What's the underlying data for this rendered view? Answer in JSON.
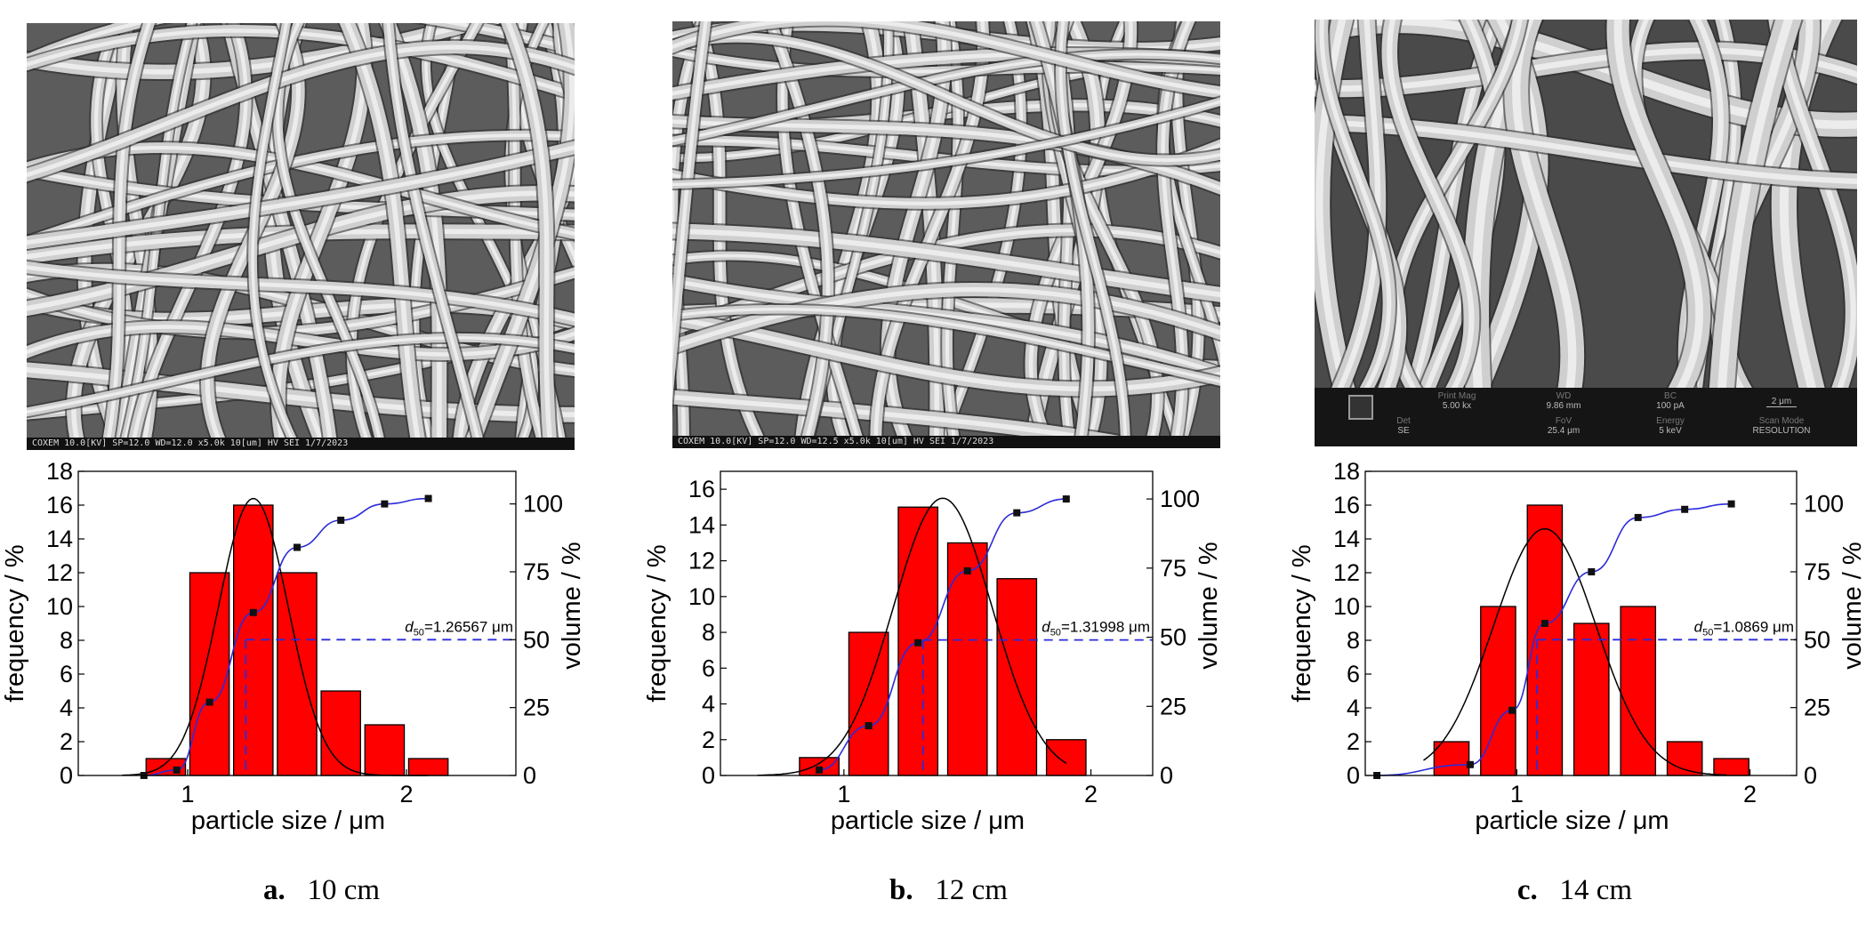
{
  "panels": [
    {
      "caption": {
        "letter": "a.",
        "text": "10 cm"
      },
      "sem": {
        "style": "bar",
        "bar_text": "COXEM 10.0[KV] SP=12.0 WD=12.0 x5.0k 10[um] HV SEI 1/7/2023"
      },
      "chart_data": {
        "type": "bar",
        "x_label": "particle size / μm",
        "y_left_label": "frequency / %",
        "y_right_label": "volume / %",
        "xlim": [
          0.5,
          2.5
        ],
        "ylim_left": [
          0,
          18
        ],
        "ylim_right": [
          0,
          112
        ],
        "x_ticks": [
          1,
          2
        ],
        "y_left_ticks": [
          0,
          2,
          4,
          6,
          8,
          10,
          12,
          14,
          16,
          18
        ],
        "y_right_ticks": [
          0,
          25,
          50,
          75,
          100
        ],
        "bar_width": 0.18,
        "bars": {
          "x": [
            0.9,
            1.1,
            1.3,
            1.5,
            1.7,
            1.9,
            2.1
          ],
          "values": [
            1,
            12,
            16,
            12,
            5,
            3,
            1
          ]
        },
        "cumulative_points": {
          "x": [
            0.8,
            0.95,
            1.1,
            1.3,
            1.5,
            1.7,
            1.9,
            2.1
          ],
          "values": [
            0,
            2,
            27,
            60,
            84,
            94,
            100,
            102
          ]
        },
        "normal_fit": {
          "mean": 1.3,
          "sd": 0.16,
          "peak": 16.4,
          "x_range": [
            0.7,
            2.1
          ]
        },
        "d50": {
          "value": 1.26567,
          "label_prefix": "d",
          "label_sub": "50",
          "label_value": "=1.26567 μm",
          "y_right": 50
        },
        "colors": {
          "bar": "#ff0000",
          "cumulative": "#2b2bd9",
          "fit": "#000000",
          "d50_line": "#2b2bd9"
        }
      }
    },
    {
      "caption": {
        "letter": "b.",
        "text": "12 cm"
      },
      "sem": {
        "style": "bar",
        "bar_text": "COXEM 10.0[KV] SP=12.0 WD=12.5 x5.0k 10[um] HV SEI 1/7/2023"
      },
      "chart_data": {
        "type": "bar",
        "x_label": "particle size / μm",
        "y_left_label": "frequency / %",
        "y_right_label": "volume / %",
        "xlim": [
          0.5,
          2.25
        ],
        "ylim_left": [
          0,
          17
        ],
        "ylim_right": [
          0,
          110
        ],
        "x_ticks": [
          1,
          2
        ],
        "y_left_ticks": [
          0,
          2,
          4,
          6,
          8,
          10,
          12,
          14,
          16
        ],
        "y_right_ticks": [
          0,
          25,
          50,
          75,
          100
        ],
        "bar_width": 0.16,
        "bars": {
          "x": [
            0.9,
            1.1,
            1.3,
            1.5,
            1.7,
            1.9
          ],
          "values": [
            1,
            8,
            15,
            13,
            11,
            2
          ]
        },
        "cumulative_points": {
          "x": [
            0.9,
            1.1,
            1.3,
            1.5,
            1.7,
            1.9
          ],
          "values": [
            2,
            18,
            48,
            74,
            95,
            100
          ]
        },
        "normal_fit": {
          "mean": 1.4,
          "sd": 0.2,
          "peak": 15.5,
          "x_range": [
            0.65,
            1.9
          ]
        },
        "d50": {
          "value": 1.31998,
          "label_prefix": "d",
          "label_sub": "50",
          "label_value": "=1.31998 μm",
          "y_right": 49
        },
        "colors": {
          "bar": "#ff0000",
          "cumulative": "#2b2bd9",
          "fit": "#000000",
          "d50_line": "#2b2bd9"
        }
      }
    },
    {
      "caption": {
        "letter": "c.",
        "text": "14 cm"
      },
      "sem": {
        "style": "info",
        "info_cells": [
          {
            "k": "Print Mag",
            "v": "5.00 kx"
          },
          {
            "k": "WD",
            "v": "9.86 mm"
          },
          {
            "k": "BC",
            "v": "100 pA"
          },
          {
            "k": "",
            "v": "2 μm"
          },
          {
            "k": "Det",
            "v": "SE"
          },
          {
            "k": "FoV",
            "v": "25.4 μm"
          },
          {
            "k": "Energy",
            "v": "5 keV"
          },
          {
            "k": "Scan Mode",
            "v": "RESOLUTION"
          }
        ]
      },
      "chart_data": {
        "type": "bar",
        "x_label": "particle size / μm",
        "y_left_label": "frequency / %",
        "y_right_label": "volume / %",
        "xlim": [
          0.35,
          2.2
        ],
        "ylim_left": [
          0,
          18
        ],
        "ylim_right": [
          0,
          112
        ],
        "x_ticks": [
          1,
          2
        ],
        "y_left_ticks": [
          0,
          2,
          4,
          6,
          8,
          10,
          12,
          14,
          16,
          18
        ],
        "y_right_ticks": [
          0,
          25,
          50,
          75,
          100
        ],
        "bar_width": 0.15,
        "bars": {
          "x": [
            0.72,
            0.92,
            1.12,
            1.32,
            1.52,
            1.72,
            1.92
          ],
          "values": [
            2,
            10,
            16,
            9,
            10,
            2,
            1
          ]
        },
        "cumulative_points": {
          "x": [
            0.4,
            0.8,
            0.98,
            1.12,
            1.32,
            1.52,
            1.72,
            1.92
          ],
          "values": [
            0,
            4,
            24,
            56,
            75,
            95,
            98,
            100
          ]
        },
        "normal_fit": {
          "mean": 1.12,
          "sd": 0.22,
          "peak": 14.6,
          "x_range": [
            0.6,
            1.9
          ]
        },
        "d50": {
          "value": 1.0869,
          "label_prefix": "d",
          "label_sub": "50",
          "label_value": "=1.0869 μm",
          "y_right": 50
        },
        "colors": {
          "bar": "#ff0000",
          "cumulative": "#2b2bd9",
          "fit": "#000000",
          "d50_line": "#2b2bd9"
        }
      }
    }
  ]
}
